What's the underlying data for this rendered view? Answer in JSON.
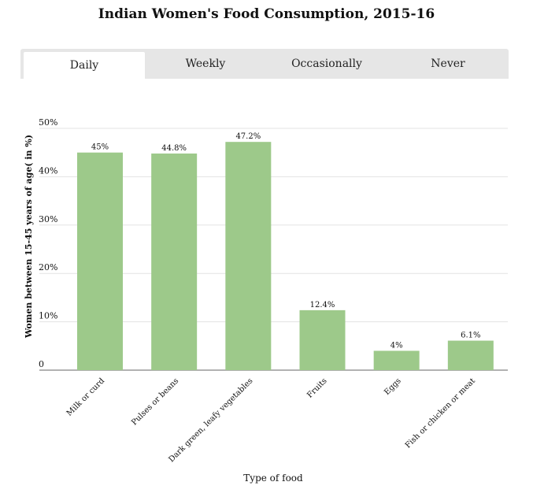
{
  "title": "Indian Women's Food Consumption, 2015-16",
  "tabs": [
    {
      "label": "Daily",
      "active": true
    },
    {
      "label": "Weekly",
      "active": false
    },
    {
      "label": "Occasionally",
      "active": false
    },
    {
      "label": "Never",
      "active": false
    }
  ],
  "colors": {
    "bar": "#9dc98a",
    "grid": "#e3e3e3",
    "axis": "#999999"
  },
  "chart_data": {
    "type": "bar",
    "categories": [
      "Milk or curd",
      "Pulses or beans",
      "Dark green, leafy vegetables",
      "Fruits",
      "Eggs",
      "Fish or chicken or meat"
    ],
    "values": [
      45,
      44.8,
      47.2,
      12.4,
      4,
      6.1
    ],
    "value_labels": [
      "45%",
      "44.8%",
      "47.2%",
      "12.4%",
      "4%",
      "6.1%"
    ],
    "yticks": [
      0,
      10,
      20,
      30,
      40,
      50
    ],
    "ytick_labels": [
      "0",
      "10%",
      "20%",
      "30%",
      "40%",
      "50%"
    ],
    "ylim": [
      0,
      50
    ],
    "xlabel": "Type of food",
    "ylabel": "Women between 15-45 years of age( in %)",
    "grid": true
  }
}
